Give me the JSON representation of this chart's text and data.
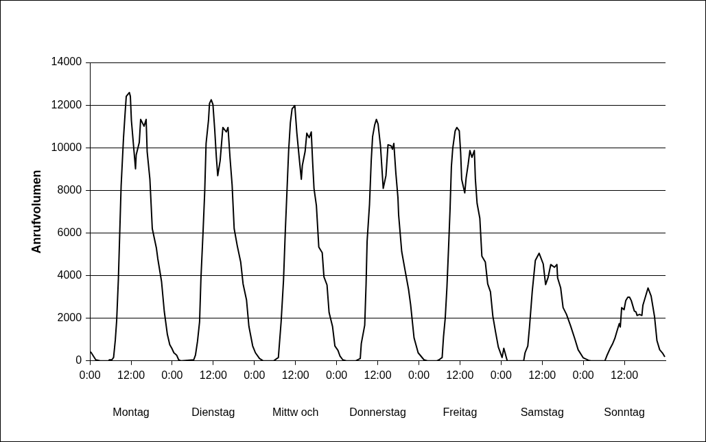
{
  "chart_data": {
    "type": "line",
    "ylabel": "Anrufvolumen",
    "xlim": [
      "--01-01T00:00",
      "--01-08T00:00"
    ],
    "ylim": [
      0,
      14000
    ],
    "xticks": [
      {
        "value": "--01-01T00:00",
        "label": "0:00"
      },
      {
        "value": "--01-01T12:00",
        "label": "12:00"
      },
      {
        "value": "--01-02T00:00",
        "label": "0:00"
      },
      {
        "value": "--01-02T12:00",
        "label": "12:00"
      },
      {
        "value": "--01-03T00:00",
        "label": "0:00"
      },
      {
        "value": "--01-03T12:00",
        "label": "12:00"
      },
      {
        "value": "--01-04T00:00",
        "label": "0:00"
      },
      {
        "value": "--01-04T12:00",
        "label": "12:00"
      },
      {
        "value": "--01-05T00:00",
        "label": "0:00"
      },
      {
        "value": "--01-05T12:00",
        "label": "12:00"
      },
      {
        "value": "--01-06T00:00",
        "label": "0:00"
      },
      {
        "value": "--01-06T12:00",
        "label": "12:00"
      },
      {
        "value": "--01-07T00:00",
        "label": "0:00"
      },
      {
        "value": "--01-07T12:00",
        "label": "12:00"
      }
    ],
    "yticks": [
      0,
      2000,
      4000,
      6000,
      8000,
      10000,
      12000,
      14000
    ],
    "grid": "y",
    "legend": false,
    "marker": "none",
    "line_style": "solid",
    "annotations": [
      "Montag",
      "Dienstag",
      "Mittw och",
      "Donnerstag",
      "Freitag",
      "Samstag",
      "Sonntag"
    ],
    "series": [
      {
        "color": "#000000",
        "x": [
          "--01-01T00:12",
          "--01-01T01:42",
          "--01-01T03:00",
          "--01-01T05:24",
          "--01-01T05:42",
          "--01-01T06:24",
          "--01-01T06:54",
          "--01-01T07:24",
          "--01-01T07:48",
          "--01-01T08:18",
          "--01-01T09:06",
          "--01-01T09:48",
          "--01-01T10:18",
          "--01-01T10:36",
          "--01-01T11:30",
          "--01-01T11:48",
          "--01-01T12:06",
          "--01-01T13:18",
          "--01-01T13:30",
          "--01-01T14:24",
          "--01-01T14:48",
          "--01-01T15:48",
          "--01-01T16:24",
          "--01-01T16:42",
          "--01-01T17:30",
          "--01-01T18:12",
          "--01-01T19:24",
          "--01-01T19:48",
          "--01-01T20:54",
          "--01-01T21:42",
          "--01-01T22:36",
          "--01-01T23:18",
          "--01-01T23:54",
          "--01-02T00:30",
          "--01-02T01:18",
          "--01-02T01:54",
          "--01-02T02:36",
          "--01-02T06:18",
          "--01-02T06:48",
          "--01-02T07:24",
          "--01-02T08:00",
          "--01-02T08:24",
          "--01-02T09:00",
          "--01-02T09:30",
          "--01-02T09:54",
          "--01-02T10:36",
          "--01-02T10:54",
          "--01-02T11:24",
          "--01-02T11:54",
          "--01-02T12:24",
          "--01-02T12:54",
          "--01-02T13:18",
          "--01-02T14:00",
          "--01-02T14:48",
          "--01-02T15:48",
          "--01-02T16:18",
          "--01-02T16:54",
          "--01-02T17:30",
          "--01-02T18:06",
          "--01-02T19:00",
          "--01-02T20:00",
          "--01-02T20:42",
          "--01-02T21:42",
          "--01-02T22:24",
          "--01-02T23:30",
          "--01-03T00:18",
          "--01-03T01:30",
          "--01-03T02:36",
          "--01-03T05:36",
          "--01-03T07:00",
          "--01-03T07:48",
          "--01-03T08:30",
          "--01-03T09:00",
          "--01-03T09:30",
          "--01-03T10:00",
          "--01-03T10:30",
          "--01-03T11:00",
          "--01-03T11:48",
          "--01-03T12:24",
          "--01-03T13:12",
          "--01-03T13:42",
          "--01-03T14:00",
          "--01-03T14:48",
          "--01-03T15:18",
          "--01-03T16:00",
          "--01-03T16:36",
          "--01-03T17:00",
          "--01-03T17:24",
          "--01-03T18:06",
          "--01-03T18:48",
          "--01-03T19:48",
          "--01-03T20:18",
          "--01-03T21:12",
          "--01-03T21:48",
          "--01-03T22:48",
          "--01-03T23:30",
          "--01-04T00:24",
          "--01-04T01:00",
          "--01-04T01:48",
          "--01-04T02:48",
          "--01-04T05:30",
          "--01-04T06:54",
          "--01-04T07:12",
          "--01-04T08:12",
          "--01-04T08:36",
          "--01-04T08:54",
          "--01-04T09:36",
          "--01-04T10:06",
          "--01-04T10:30",
          "--01-04T11:06",
          "--01-04T11:36",
          "--01-04T12:06",
          "--01-04T12:48",
          "--01-04T13:18",
          "--01-04T13:36",
          "--01-04T14:24",
          "--01-04T15:00",
          "--01-04T15:54",
          "--01-04T16:18",
          "--01-04T16:42",
          "--01-04T17:18",
          "--01-04T17:54",
          "--01-04T18:06",
          "--01-04T19:00",
          "--01-04T19:54",
          "--01-04T21:00",
          "--01-04T21:36",
          "--01-04T22:36",
          "--01-04T23:48",
          "--01-05T01:30",
          "--01-05T02:30",
          "--01-05T05:12",
          "--01-05T05:54",
          "--01-05T06:48",
          "--01-05T07:12",
          "--01-05T07:42",
          "--01-05T08:12",
          "--01-05T08:42",
          "--01-05T09:06",
          "--01-05T09:30",
          "--01-05T09:54",
          "--01-05T10:36",
          "--01-05T11:06",
          "--01-05T11:48",
          "--01-05T12:12",
          "--01-05T12:30",
          "--01-05T13:24",
          "--01-05T13:48",
          "--01-05T14:24",
          "--01-05T14:54",
          "--01-05T15:30",
          "--01-05T16:12",
          "--01-05T16:30",
          "--01-05T17:00",
          "--01-05T17:48",
          "--01-05T18:24",
          "--01-05T19:24",
          "--01-05T20:06",
          "--01-05T20:54",
          "--01-05T21:36",
          "--01-05T22:24",
          "--01-05T23:12",
          "--01-06T00:18",
          "--01-06T00:48",
          "--01-06T01:48",
          "--01-06T06:36",
          "--01-06T07:00",
          "--01-06T07:48",
          "--01-06T08:18",
          "--01-06T09:06",
          "--01-06T10:00",
          "--01-06T11:06",
          "--01-06T12:18",
          "--01-06T13:00",
          "--01-06T13:42",
          "--01-06T14:30",
          "--01-06T15:36",
          "--01-06T16:18",
          "--01-06T16:30",
          "--01-06T17:24",
          "--01-06T18:06",
          "--01-06T19:06",
          "--01-06T20:18",
          "--01-06T21:30",
          "--01-06T22:30",
          "--01-07T00:00",
          "--01-07T01:30",
          "--01-07T02:12",
          "--01-07T06:18",
          "--01-07T06:54",
          "--01-07T07:48",
          "--01-07T08:30",
          "--01-07T09:12",
          "--01-07T09:48",
          "--01-07T10:30",
          "--01-07T10:48",
          "--01-07T11:12",
          "--01-07T11:54",
          "--01-07T12:24",
          "--01-07T13:00",
          "--01-07T13:30",
          "--01-07T14:00",
          "--01-07T14:54",
          "--01-07T15:24",
          "--01-07T15:42",
          "--01-07T16:24",
          "--01-07T17:06",
          "--01-07T17:24",
          "--01-07T18:06",
          "--01-07T18:54",
          "--01-07T19:48",
          "--01-07T20:48",
          "--01-07T21:30",
          "--01-07T22:18",
          "--01-07T23:12",
          "--01-07T23:48"
        ],
        "values": [
          430,
          50,
          0,
          0,
          50,
          50,
          160,
          970,
          1890,
          3830,
          8200,
          10470,
          11710,
          12410,
          12590,
          12410,
          11280,
          9010,
          9660,
          10250,
          11330,
          11010,
          11330,
          9820,
          8520,
          6200,
          5290,
          4800,
          3720,
          2320,
          1240,
          760,
          590,
          380,
          270,
          50,
          0,
          50,
          270,
          920,
          1830,
          3880,
          5990,
          7930,
          10200,
          11280,
          12080,
          12250,
          12030,
          10900,
          9550,
          8690,
          9390,
          10950,
          10740,
          10950,
          9500,
          8250,
          6200,
          5400,
          4640,
          3610,
          2860,
          1620,
          700,
          380,
          110,
          0,
          0,
          160,
          1830,
          3780,
          5990,
          7930,
          9870,
          11170,
          11820,
          11980,
          10680,
          9330,
          8520,
          9170,
          9820,
          10680,
          10470,
          10740,
          9330,
          8090,
          7280,
          5340,
          5070,
          3940,
          3560,
          2270,
          1620,
          700,
          490,
          220,
          50,
          0,
          0,
          110,
          810,
          1670,
          3610,
          5610,
          7340,
          9390,
          10520,
          11060,
          11330,
          11110,
          10090,
          8850,
          8090,
          8690,
          10140,
          10090,
          9930,
          10200,
          8790,
          7660,
          6850,
          5130,
          4320,
          3350,
          2640,
          1080,
          380,
          50,
          0,
          0,
          50,
          160,
          1130,
          2000,
          3450,
          5400,
          7070,
          9120,
          9980,
          10790,
          10950,
          10790,
          9770,
          8520,
          7880,
          8580,
          9230,
          9870,
          9550,
          9870,
          8520,
          7390,
          6690,
          4910,
          4640,
          3610,
          3240,
          2100,
          1350,
          650,
          160,
          590,
          0,
          0,
          380,
          700,
          1590,
          3260,
          4710,
          5050,
          4550,
          3580,
          3900,
          4520,
          4390,
          4520,
          3900,
          3420,
          2500,
          2180,
          1640,
          1050,
          520,
          140,
          30,
          0,
          0,
          250,
          570,
          780,
          1050,
          1380,
          1750,
          1590,
          2500,
          2400,
          2830,
          2990,
          2990,
          2830,
          2340,
          2290,
          2130,
          2180,
          2130,
          2610,
          2990,
          3420,
          3040,
          2070,
          950,
          520,
          350,
          190
        ]
      }
    ]
  }
}
